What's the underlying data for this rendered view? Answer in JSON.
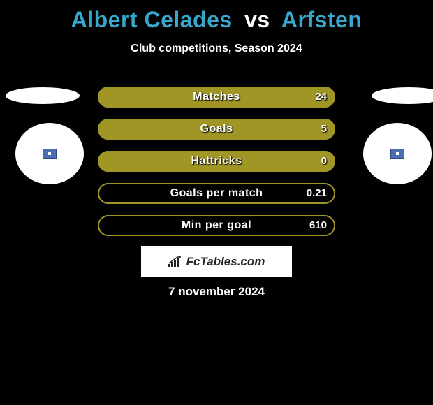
{
  "header": {
    "player1": "Albert Celades",
    "vs": "vs",
    "player2": "Arfsten",
    "subtitle": "Club competitions, Season 2024"
  },
  "colors": {
    "accent": "#37a7cb",
    "bar_fill": "#a09626",
    "bar_border": "#a09626",
    "background": "#000000",
    "text": "#ffffff"
  },
  "stats": [
    {
      "label": "Matches",
      "value": "24",
      "fill_pct": 100
    },
    {
      "label": "Goals",
      "value": "5",
      "fill_pct": 100
    },
    {
      "label": "Hattricks",
      "value": "0",
      "fill_pct": 100
    },
    {
      "label": "Goals per match",
      "value": "0.21",
      "fill_pct": 0
    },
    {
      "label": "Min per goal",
      "value": "610",
      "fill_pct": 0
    }
  ],
  "footer": {
    "logo_text": "FcTables.com",
    "date": "7 november 2024"
  }
}
